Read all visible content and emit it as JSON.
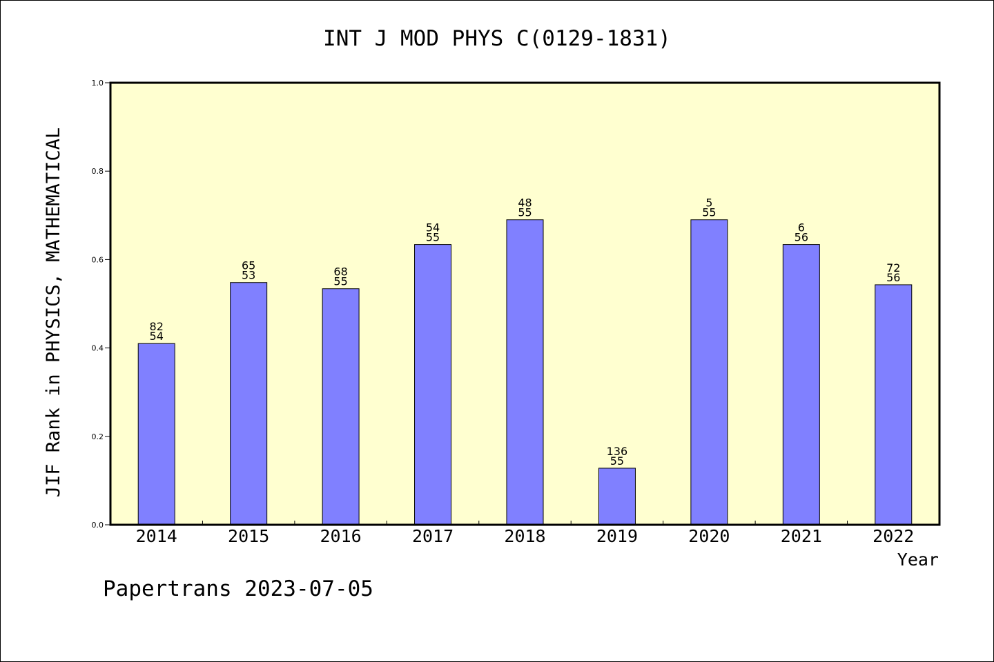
{
  "chart_data": {
    "type": "bar",
    "title": "INT J MOD PHYS C(0129-1831)",
    "ylabel": "JIF Rank in PHYSICS, MATHEMATICAL",
    "xlabel": "Year",
    "ylim": [
      0,
      1.0
    ],
    "yticks": [
      "0.0",
      "0.2",
      "0.4",
      "0.6",
      "0.8",
      "1.0"
    ],
    "categories": [
      "2014",
      "2015",
      "2016",
      "2017",
      "2018",
      "2019",
      "2020",
      "2021",
      "2022"
    ],
    "values": [
      0.41,
      0.548,
      0.534,
      0.634,
      0.69,
      0.128,
      0.69,
      0.634,
      0.543
    ],
    "label_top": [
      "82",
      "65",
      "68",
      "54",
      "48",
      "136",
      "5",
      "6",
      "72"
    ],
    "label_bottom": [
      "54",
      "53",
      "55",
      "55",
      "55",
      "55",
      "55",
      "56",
      "56"
    ],
    "grid": false,
    "colors": {
      "plot_bg": "#ffffd0",
      "bar": "#8080ff"
    }
  },
  "footer": "Papertrans 2023-07-05"
}
